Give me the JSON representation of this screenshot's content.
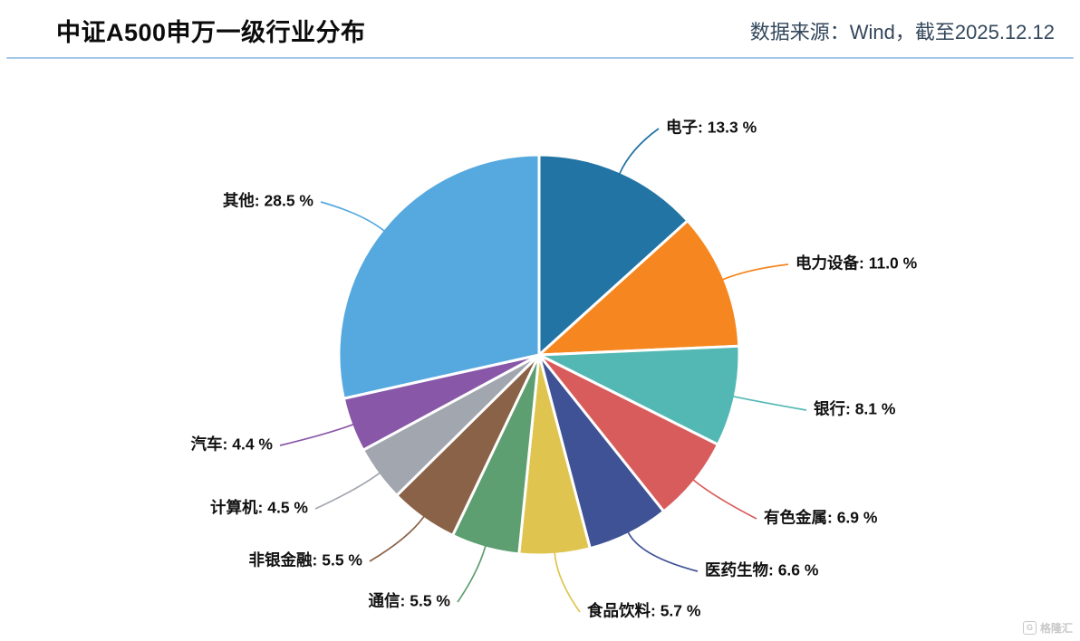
{
  "header": {
    "title": "中证A500申万一级行业分布",
    "source": "数据来源：Wind，截至2025.12.12"
  },
  "watermark": {
    "text": "格隆汇"
  },
  "chart_data": {
    "type": "pie",
    "title": "中证A500申万一级行业分布",
    "source": "Wind",
    "as_of_date": "2025.12.12",
    "direction": "clockwise",
    "start_angle_deg": 0,
    "label_format": "{name}: {value} %",
    "unit": "%",
    "legend": "none, outside leader-line labels",
    "categories": [
      "电子",
      "电力设备",
      "银行",
      "有色金属",
      "医药生物",
      "食品饮料",
      "通信",
      "非银金融",
      "计算机",
      "汽车",
      "其他"
    ],
    "values": [
      13.3,
      11.0,
      8.1,
      6.9,
      6.6,
      5.7,
      5.5,
      5.5,
      4.5,
      4.4,
      28.5
    ],
    "colors": [
      "#2274a5",
      "#f6861f",
      "#53b8b4",
      "#d95c5c",
      "#3f5295",
      "#dfc54f",
      "#5d9f70",
      "#8a6248",
      "#a2a6af",
      "#8857a8",
      "#56a9de"
    ]
  }
}
